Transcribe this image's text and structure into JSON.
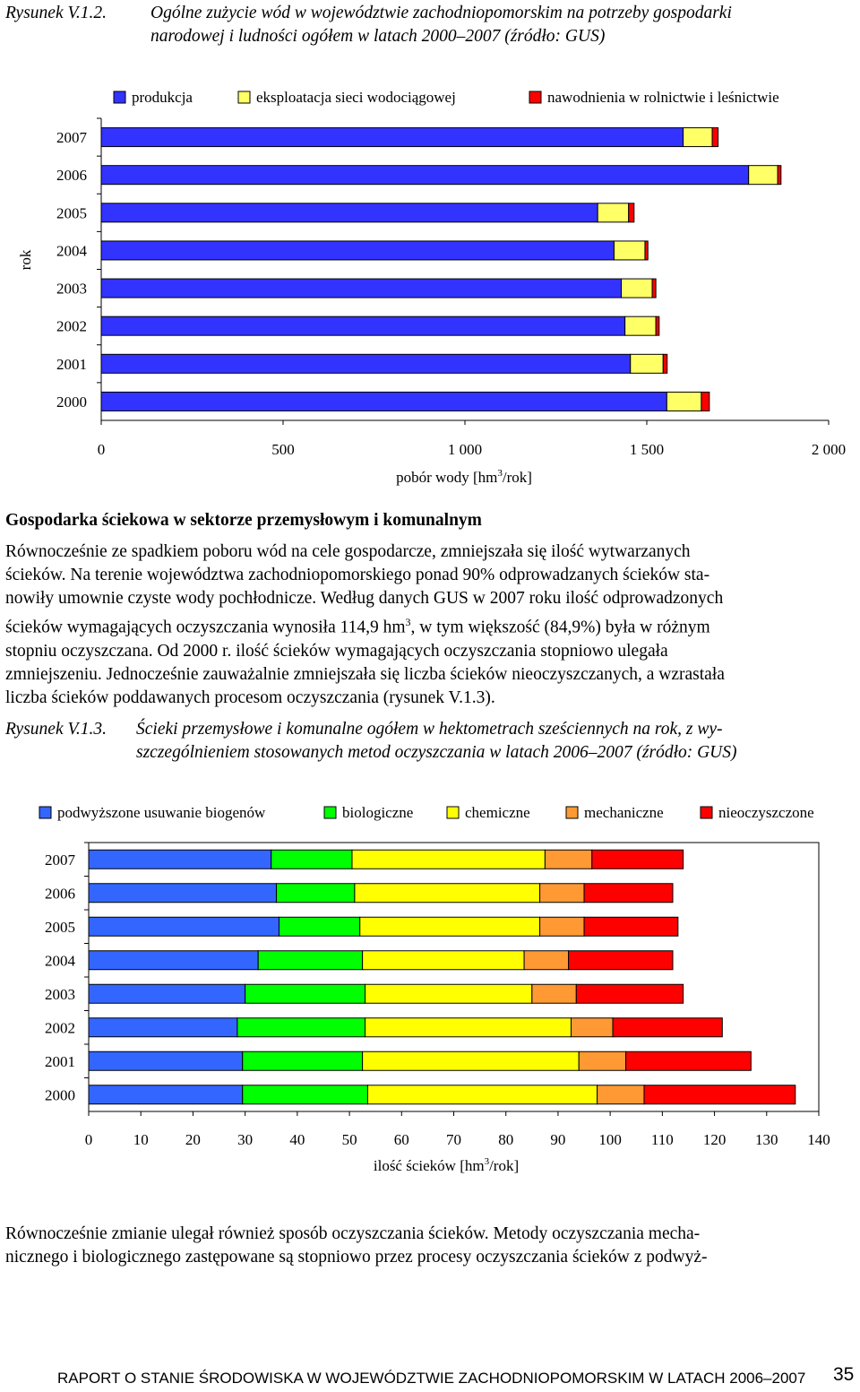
{
  "figure1": {
    "label": "Rysunek V.1.2.",
    "caption_line1": "Ogólne zużycie wód w województwie zachodniopomorskim na potrzeby gospodarki",
    "caption_line2": "narodowej i ludności ogółem w latach 2000–2007 (źródło: GUS)"
  },
  "figure2": {
    "label": "Rysunek V.1.3.",
    "caption_line1": "Ścieki przemysłowe i komunalne ogółem w hektometrach sześciennych na rok, z wy-",
    "caption_line2": "szczególnieniem stosowanych metod oczyszczania w latach 2006–2007 (źródło: GUS)"
  },
  "section": {
    "heading": "Gospodarka ściekowa w sektorze przemysłowym i komunalnym",
    "p1_l1": "Równocześnie ze spadkiem poboru wód na cele gospodarcze, zmniejszała się ilość wytwarzanych",
    "p1_l2": "ścieków. Na terenie województwa zachodniopomorskiego ponad 90% odprowadzanych ścieków sta-",
    "p1_l3": "nowiły umownie czyste wody pochłodnicze. Według danych GUS w 2007 roku ilość odprowadzonych",
    "p1_l4a": "ścieków wymagających oczyszczania wynosiła 114,9 hm",
    "p1_l4sup": "3",
    "p1_l4b": ", w tym większość (84,9%) była w różnym",
    "p1_l5": "stopniu oczyszczana. Od 2000 r. ilość ścieków wymagających oczyszczania stopniowo ulegała",
    "p1_l6": "zmniejszeniu. Jednocześnie zauważalnie zmniejszała się liczba ścieków nieoczyszczanych, a wzrastała",
    "p1_l7": "liczba ścieków poddawanych procesom oczyszczania (rysunek V.1.3).",
    "p2_l1": "Równocześnie zmianie ulegał również sposób oczyszczania ścieków. Metody oczyszczania mecha-",
    "p2_l2": "nicznego i biologicznego zastępowane są stopniowo przez procesy oczyszczania ścieków z podwyż-"
  },
  "footer": {
    "text": "RAPORT O STANIE ŚRODOWISKA W WOJEWÓDZTWIE ZACHODNIOPOMORSKIM W LATACH 2006–2007",
    "page": "35"
  },
  "chart_data": [
    {
      "type": "bar",
      "orientation": "horizontal",
      "stacked": true,
      "categories": [
        "2007",
        "2006",
        "2005",
        "2004",
        "2003",
        "2002",
        "2001",
        "2000"
      ],
      "series": [
        {
          "name": "produkcja",
          "color": "#3333ff",
          "values": [
            1600,
            1780,
            1365,
            1410,
            1430,
            1440,
            1455,
            1555
          ]
        },
        {
          "name": "eksploatacja sieci wodociągowej",
          "color": "#ffff66",
          "values": [
            80,
            80,
            85,
            85,
            85,
            85,
            90,
            95
          ]
        },
        {
          "name": "nawodnienia w rolnictwie i leśnictwie",
          "color": "#ff0000",
          "values": [
            16,
            9,
            15,
            8,
            10,
            9,
            11,
            22
          ]
        }
      ],
      "xlabel": "pobór wody [hm",
      "xlabel_sup": "3",
      "xlabel_end": "/rok]",
      "ylabel": "rok",
      "xlim": [
        0,
        2000
      ],
      "xticks": [
        0,
        500,
        1000,
        1500,
        2000
      ],
      "xtick_labels": [
        "0",
        "500",
        "1 000",
        "1 500",
        "2 000"
      ],
      "grid": false,
      "legend_position": "top"
    },
    {
      "type": "bar",
      "orientation": "horizontal",
      "stacked": true,
      "categories": [
        "2007",
        "2006",
        "2005",
        "2004",
        "2003",
        "2002",
        "2001",
        "2000"
      ],
      "series": [
        {
          "name": "podwyższone usuwanie biogenów",
          "color": "#3366ff",
          "values": [
            35,
            36,
            36.5,
            32.5,
            30,
            28.5,
            29.5,
            29.5
          ]
        },
        {
          "name": "biologiczne",
          "color": "#00ff00",
          "values": [
            15.5,
            15,
            15.5,
            20,
            23,
            24.5,
            23,
            24
          ]
        },
        {
          "name": "chemiczne",
          "color": "#ffff00",
          "values": [
            37,
            35.5,
            34.5,
            31,
            32,
            39.5,
            41.5,
            44
          ]
        },
        {
          "name": "mechaniczne",
          "color": "#ff9933",
          "values": [
            9,
            8.5,
            8.5,
            8.5,
            8.5,
            8,
            9,
            9
          ]
        },
        {
          "name": "nieoczyszczone",
          "color": "#ff0000",
          "values": [
            17.5,
            17,
            18,
            20,
            20.5,
            21,
            24,
            29
          ]
        }
      ],
      "xlabel": "ilość ścieków [hm",
      "xlabel_sup": "3",
      "xlabel_end": "/rok]",
      "xlim": [
        0,
        140
      ],
      "xticks": [
        0,
        10,
        20,
        30,
        40,
        50,
        60,
        70,
        80,
        90,
        100,
        110,
        120,
        130,
        140
      ],
      "xtick_labels": [
        "0",
        "10",
        "20",
        "30",
        "40",
        "50",
        "60",
        "70",
        "80",
        "90",
        "100",
        "110",
        "120",
        "130",
        "140"
      ],
      "grid": false,
      "legend_position": "top"
    }
  ]
}
